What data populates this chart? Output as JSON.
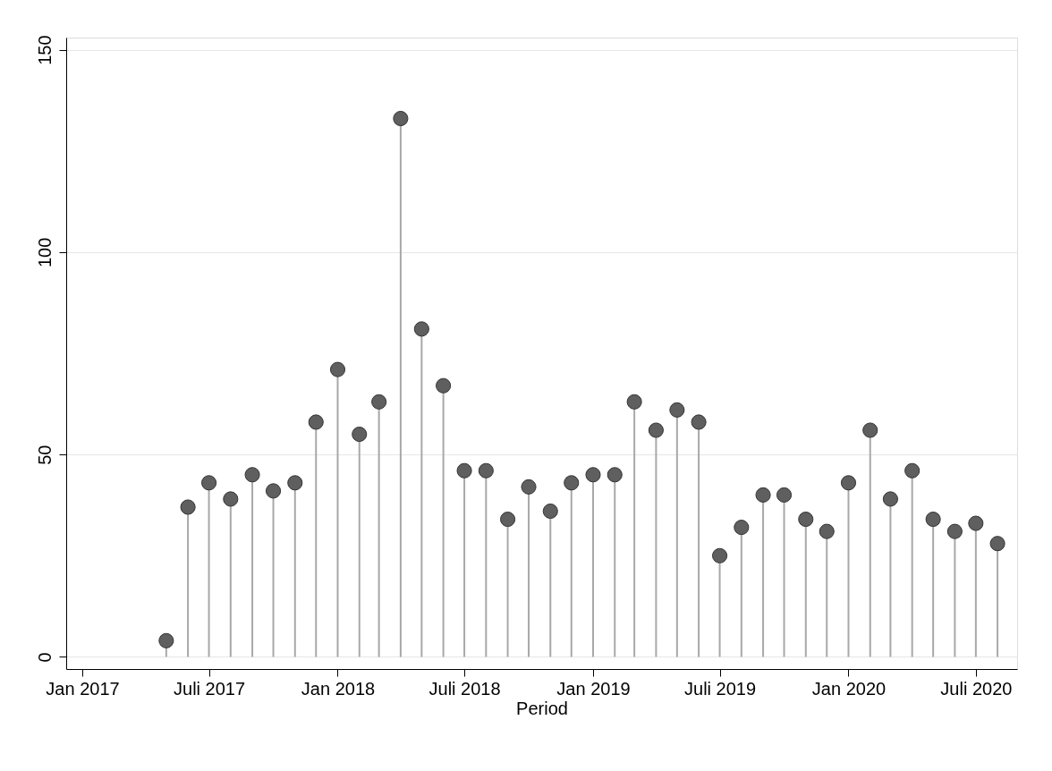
{
  "chart_data": {
    "type": "lollipop",
    "xlabel": "Period",
    "x": [
      "2017-05",
      "2017-06",
      "2017-07",
      "2017-08",
      "2017-09",
      "2017-10",
      "2017-11",
      "2017-12",
      "2018-01",
      "2018-02",
      "2018-03",
      "2018-04",
      "2018-05",
      "2018-06",
      "2018-07",
      "2018-08",
      "2018-09",
      "2018-10",
      "2018-11",
      "2018-12",
      "2019-01",
      "2019-02",
      "2019-03",
      "2019-04",
      "2019-05",
      "2019-06",
      "2019-07",
      "2019-08",
      "2019-09",
      "2019-10",
      "2019-11",
      "2019-12",
      "2020-01",
      "2020-02",
      "2020-03",
      "2020-04",
      "2020-05",
      "2020-06",
      "2020-07",
      "2020-08"
    ],
    "series": [
      {
        "color": "#5f5f5f",
        "values": [
          4,
          37,
          43,
          39,
          45,
          41,
          43,
          58,
          71,
          55,
          63,
          133,
          81,
          67,
          46,
          46,
          34,
          42,
          36,
          43,
          45,
          45,
          63,
          56,
          61,
          58,
          25,
          32,
          40,
          40,
          34,
          31,
          43,
          56,
          39,
          46,
          34,
          31,
          33,
          28
        ]
      }
    ],
    "xlim": [
      "2016-12-09",
      "2020-08-29"
    ],
    "xticks": [
      {
        "value": "2017-01",
        "label": "Jan 2017"
      },
      {
        "value": "2017-07",
        "label": "Juli 2017"
      },
      {
        "value": "2018-01",
        "label": "Jan 2018"
      },
      {
        "value": "2018-07",
        "label": "Juli 2018"
      },
      {
        "value": "2019-01",
        "label": "Jan 2019"
      },
      {
        "value": "2019-07",
        "label": "Juli 2019"
      },
      {
        "value": "2020-01",
        "label": "Jan 2020"
      },
      {
        "value": "2020-07",
        "label": "Juli 2020"
      }
    ],
    "ylim": [
      -3,
      153
    ],
    "yticks": [
      0,
      50,
      100,
      150
    ],
    "grid": "y",
    "marker": "circle"
  }
}
